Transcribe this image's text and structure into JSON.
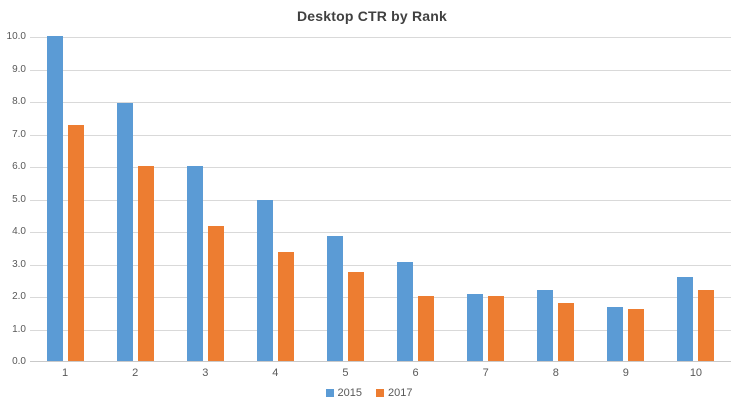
{
  "chart_data": {
    "type": "bar",
    "title": "Desktop CTR by Rank",
    "xlabel": "",
    "ylabel": "",
    "categories": [
      "1",
      "2",
      "3",
      "4",
      "5",
      "6",
      "7",
      "8",
      "9",
      "10"
    ],
    "series": [
      {
        "name": "2015",
        "color": "#5B9BD5",
        "values": [
          10.0,
          7.95,
          6.0,
          4.95,
          3.85,
          3.05,
          2.05,
          2.2,
          1.65,
          2.6
        ]
      },
      {
        "name": "2017",
        "color": "#ED7D31",
        "values": [
          7.25,
          6.0,
          4.15,
          3.35,
          2.75,
          2.0,
          2.0,
          1.8,
          1.6,
          2.2
        ]
      }
    ],
    "ylim": [
      0,
      10
    ],
    "ytick_step": 1,
    "ytick_labels": [
      "0.0",
      "1.0",
      "2.0",
      "3.0",
      "4.0",
      "5.0",
      "6.0",
      "7.0",
      "8.0",
      "9.0",
      "10.0"
    ],
    "grid": true,
    "legend_position": "bottom-center",
    "colors": {
      "gridline": "#D9D9D9",
      "axis_line": "#C9C9C9",
      "tick_text": "#595959",
      "title_text": "#404040",
      "background": "#FFFFFF"
    }
  }
}
